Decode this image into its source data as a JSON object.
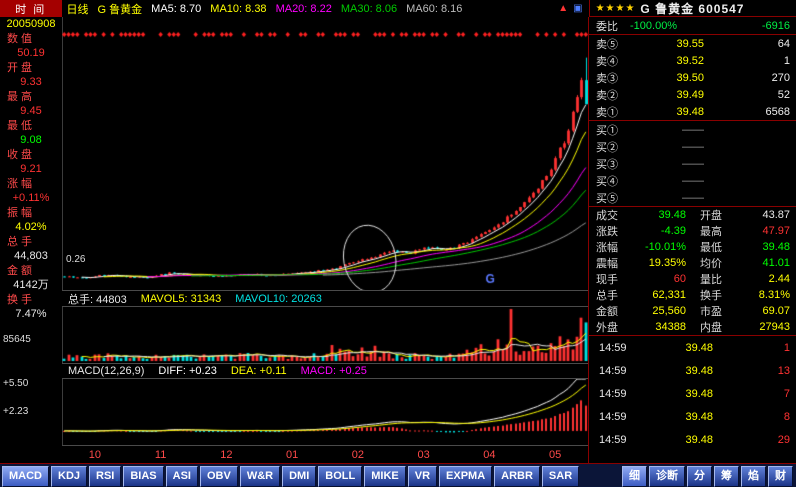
{
  "topbar": {
    "time_label": "时 间",
    "period": "日线",
    "stock_name": "G 鲁黄金",
    "ma_values": [
      {
        "text": "MA5: 8.70",
        "color": "#ffffff"
      },
      {
        "text": "MA10: 8.38",
        "color": "#ffff00"
      },
      {
        "text": "MA20: 8.22",
        "color": "#ff00ff"
      },
      {
        "text": "MA30: 8.06",
        "color": "#00cc00"
      },
      {
        "text": "MA60: 8.16",
        "color": "#bbbbbb"
      }
    ],
    "icons": {
      "up": "▲",
      "window": "▣"
    }
  },
  "right_header": {
    "stars": "★★★★",
    "title": "G 鲁黄金 600547"
  },
  "sidebar": {
    "rows": [
      {
        "label": "",
        "value": "20050908",
        "color": "#ffff00"
      },
      {
        "label": "数 值",
        "value": "50.19",
        "color": "#ff3232"
      },
      {
        "label": "开 盘",
        "value": "9.33",
        "color": "#ff3232"
      },
      {
        "label": "最 高",
        "value": "9.45",
        "color": "#ff3232"
      },
      {
        "label": "最 低",
        "value": "9.08",
        "color": "#00ff00"
      },
      {
        "label": "收 盘",
        "value": "9.21",
        "color": "#ff3232"
      },
      {
        "label": "涨 幅",
        "value": "+0.11%",
        "color": "#ff3232"
      },
      {
        "label": "振 幅",
        "value": "4.02%",
        "color": "#ffff00"
      },
      {
        "label": "总 手",
        "value": "44,803",
        "color": "#e8e8e8"
      },
      {
        "label": "金 额",
        "value": "4142万",
        "color": "#e8e8e8"
      },
      {
        "label": "换 手",
        "value": "7.47%",
        "color": "#e8e8e8"
      }
    ],
    "vol_scale": "85645",
    "macd_scale_top": "+5.50",
    "macd_scale_mid": "+2.23"
  },
  "vol_header": {
    "items": [
      {
        "text": "总手: 44803",
        "color": "#e8e8e8"
      },
      {
        "text": "MAVOL5: 31343",
        "color": "#ffff00"
      },
      {
        "text": "MAVOL10: 20263",
        "color": "#00e1e1"
      }
    ]
  },
  "macd_header": {
    "items": [
      {
        "text": "MACD(12,26,9)",
        "color": "#e8e8e8"
      },
      {
        "text": "DIFF: +0.23",
        "color": "#ffffff"
      },
      {
        "text": "DEA: +0.11",
        "color": "#ffff00"
      },
      {
        "text": "MACD: +0.25",
        "color": "#ff00ff"
      }
    ]
  },
  "axis_months": [
    "10",
    "11",
    "12",
    "01",
    "02",
    "03",
    "04",
    "05"
  ],
  "chart_annotations": {
    "first_price_label": "0.26",
    "g_marker": "G"
  },
  "order_book": {
    "weibi_label": "委比",
    "weibi_value": "-100.00%",
    "weicha_value": "-6916",
    "sells": [
      {
        "label": "卖⑤",
        "price": "39.55",
        "qty": "64"
      },
      {
        "label": "卖④",
        "price": "39.52",
        "qty": "1"
      },
      {
        "label": "卖③",
        "price": "39.50",
        "qty": "270"
      },
      {
        "label": "卖②",
        "price": "39.49",
        "qty": "52"
      },
      {
        "label": "卖①",
        "price": "39.48",
        "qty": "6568"
      }
    ],
    "buys": [
      {
        "label": "买①",
        "price": "——",
        "qty": ""
      },
      {
        "label": "买②",
        "price": "——",
        "qty": ""
      },
      {
        "label": "买③",
        "price": "——",
        "qty": ""
      },
      {
        "label": "买④",
        "price": "——",
        "qty": ""
      },
      {
        "label": "买⑤",
        "price": "——",
        "qty": ""
      }
    ]
  },
  "quote": {
    "rows": [
      [
        {
          "label": "成交",
          "value": "39.48",
          "color": "#00ff00"
        },
        {
          "label": "开盘",
          "value": "43.87",
          "color": "#e8e8e8"
        }
      ],
      [
        {
          "label": "涨跌",
          "value": "-4.39",
          "color": "#00ff00"
        },
        {
          "label": "最高",
          "value": "47.97",
          "color": "#ff3232"
        }
      ],
      [
        {
          "label": "涨幅",
          "value": "-10.01%",
          "color": "#00ff00"
        },
        {
          "label": "最低",
          "value": "39.48",
          "color": "#00ff00"
        }
      ],
      [
        {
          "label": "震幅",
          "value": "19.35%",
          "color": "#ffff00"
        },
        {
          "label": "均价",
          "value": "41.01",
          "color": "#00ff00"
        }
      ],
      [
        {
          "label": "现手",
          "value": "60",
          "color": "#ff3232"
        },
        {
          "label": "量比",
          "value": "2.44",
          "color": "#ffff00"
        }
      ],
      [
        {
          "label": "总手",
          "value": "62,331",
          "color": "#ffff00"
        },
        {
          "label": "换手",
          "value": "8.31%",
          "color": "#ffff00"
        }
      ],
      [
        {
          "label": "金额",
          "value": "25,560",
          "color": "#ffff00"
        },
        {
          "label": "市盈",
          "value": "69.07",
          "color": "#ffff00"
        }
      ],
      [
        {
          "label": "外盘",
          "value": "34388",
          "color": "#ffff00"
        },
        {
          "label": "内盘",
          "value": "27943",
          "color": "#ffff00"
        }
      ]
    ]
  },
  "ticks": [
    {
      "time": "14:59",
      "price": "39.48",
      "qty": "1",
      "qty_color": "#ff3232"
    },
    {
      "time": "14:59",
      "price": "39.48",
      "qty": "13",
      "qty_color": "#ff3232"
    },
    {
      "time": "14:59",
      "price": "39.48",
      "qty": "7",
      "qty_color": "#ff3232"
    },
    {
      "time": "14:59",
      "price": "39.48",
      "qty": "8",
      "qty_color": "#ff3232"
    },
    {
      "time": "14:59",
      "price": "39.48",
      "qty": "29",
      "qty_color": "#ff3232"
    }
  ],
  "indicator_tabs": [
    "MACD",
    "KDJ",
    "RSI",
    "BIAS",
    "ASI",
    "OBV",
    "W&R",
    "DMI",
    "BOLL",
    "MIKE",
    "VR",
    "EXPMA",
    "ARBR",
    "SAR"
  ],
  "panel_tabs": [
    "细",
    "诊断",
    "分",
    "筹",
    "焰",
    "财"
  ],
  "colors": {
    "up": "#ff3232",
    "down": "#00e1e1",
    "accent_red": "#8a0000"
  },
  "chart_data": {
    "type": "candlestick+volume+macd",
    "months": [
      "10",
      "11",
      "12",
      "01",
      "02",
      "03",
      "04",
      "05"
    ],
    "price_anchors": [
      [
        0,
        8.1
      ],
      [
        0.04,
        7.9
      ],
      [
        0.08,
        8.4
      ],
      [
        0.12,
        8.1
      ],
      [
        0.16,
        8.0
      ],
      [
        0.2,
        8.7
      ],
      [
        0.24,
        8.4
      ],
      [
        0.28,
        8.2
      ],
      [
        0.32,
        8.3
      ],
      [
        0.36,
        8.5
      ],
      [
        0.4,
        8.3
      ],
      [
        0.44,
        8.6
      ],
      [
        0.48,
        9.0
      ],
      [
        0.52,
        9.6
      ],
      [
        0.56,
        10.8
      ],
      [
        0.6,
        11.8
      ],
      [
        0.63,
        12.8
      ],
      [
        0.66,
        12.2
      ],
      [
        0.69,
        13.6
      ],
      [
        0.72,
        12.9
      ],
      [
        0.75,
        13.4
      ],
      [
        0.78,
        14.8
      ],
      [
        0.81,
        16.2
      ],
      [
        0.84,
        18.0
      ],
      [
        0.87,
        20.5
      ],
      [
        0.9,
        23.5
      ],
      [
        0.93,
        27.5
      ],
      [
        0.96,
        33.0
      ],
      [
        0.985,
        41.0
      ],
      [
        1,
        43.9
      ]
    ],
    "last_candle": {
      "o": 43.87,
      "h": 47.97,
      "l": 39.48,
      "c": 39.48
    },
    "candles_count": 120,
    "price_range": [
      6,
      51
    ],
    "volume_max": 85645,
    "last_volume": 62331,
    "macd_range": [
      -1.3,
      5.6
    ],
    "ma_legend": {
      "MA5": 8.7,
      "MA10": 8.38,
      "MA20": 8.22,
      "MA30": 8.06,
      "MA60": 8.16
    }
  }
}
